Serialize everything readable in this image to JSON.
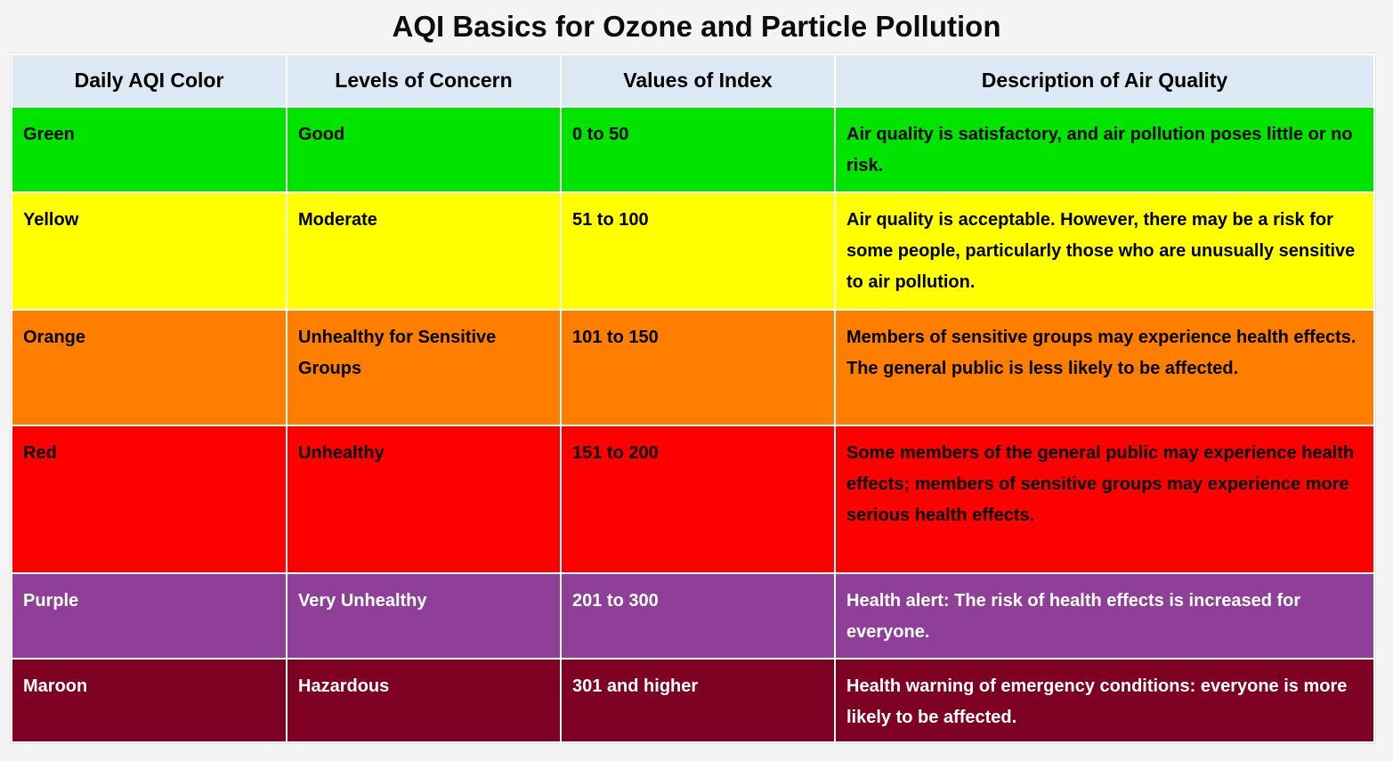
{
  "page": {
    "title": "AQI Basics for Ozone and Particle Pollution",
    "background_color": "#f4f4f5"
  },
  "table": {
    "header_bg": "#dce9f5",
    "headers": [
      "Daily AQI Color",
      "Levels of Concern",
      "Values of Index",
      "Description of Air Quality"
    ],
    "rows": [
      {
        "color_name": "Green",
        "level": "Good",
        "index_range": "0 to 50",
        "description": "Air quality is satisfactory, and air pollution poses little or no risk.",
        "row_color": "#00e400",
        "text_color": "#000000"
      },
      {
        "color_name": "Yellow",
        "level": "Moderate",
        "index_range": "51 to 100",
        "description": "Air quality is acceptable. However, there may be a risk for some people, particularly those who are unusually sensitive to air pollution.",
        "row_color": "#ffff00",
        "text_color": "#000000"
      },
      {
        "color_name": "Orange",
        "level": "Unhealthy for Sensitive Groups",
        "index_range": "101 to 150",
        "description": "Members of sensitive groups may experience health effects. The general public is less likely to be affected.",
        "row_color": "#ff7e00",
        "text_color": "#000000"
      },
      {
        "color_name": "Red",
        "level": "Unhealthy",
        "index_range": "151 to 200",
        "description": "Some members of the general public may experience health effects; members of sensitive groups may experience more serious health effects.",
        "row_color": "#ff0000",
        "text_color": "#000000"
      },
      {
        "color_name": "Purple",
        "level": "Very Unhealthy",
        "index_range": "201 to 300",
        "description": "Health alert: The risk of health effects is increased for everyone.",
        "row_color": "#8f3f97",
        "text_color": "#ffffff"
      },
      {
        "color_name": "Maroon",
        "level": "Hazardous",
        "index_range": "301 and higher",
        "description": "Health warning of emergency conditions: everyone is more likely to be affected.",
        "row_color": "#7e0023",
        "text_color": "#ffffff"
      }
    ]
  }
}
